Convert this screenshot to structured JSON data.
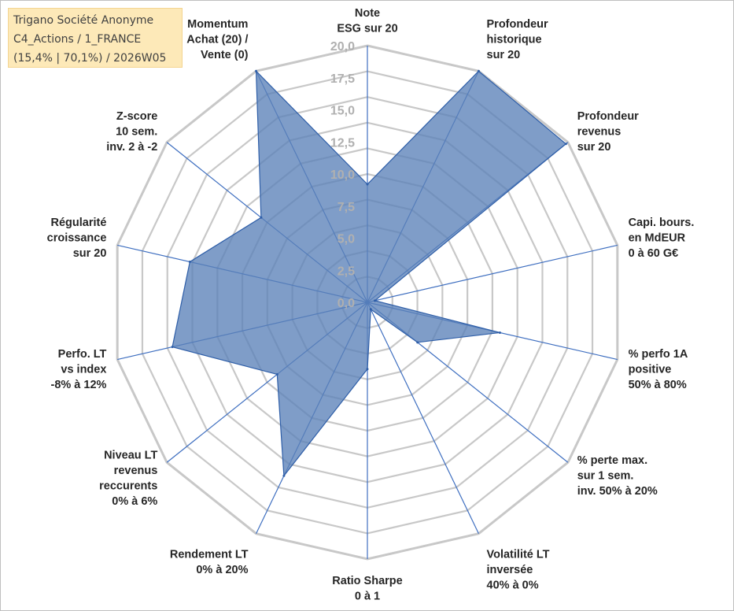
{
  "title_box": {
    "line1": "Trigano Société Anonyme",
    "line2": "C4_Actions / 1_FRANCE",
    "line3": "(15,4% | 70,1%) / 2026W05"
  },
  "colors": {
    "fill": "#5b82b8",
    "stroke": "#2e5ea8",
    "ring": "#c8c8c8",
    "spoke": "#3f6fc0"
  },
  "chart_data": {
    "type": "radar",
    "rmax": 20,
    "ticks": [
      "0,0",
      "2,5",
      "5,0",
      "7,5",
      "10,0",
      "12,5",
      "15,0",
      "17,5",
      "20,0"
    ],
    "tick_values": [
      0,
      2.5,
      5,
      7.5,
      10,
      12.5,
      15,
      17.5,
      20
    ],
    "grid_levels": [
      2,
      4,
      6,
      8,
      10,
      12,
      14,
      16,
      18,
      20
    ],
    "axes": [
      {
        "label": [
          "Note",
          "ESG sur 20"
        ],
        "value": 9.2
      },
      {
        "label": [
          "Profondeur",
          "historique",
          "sur 20"
        ],
        "value": 20.0
      },
      {
        "label": [
          "Profondeur",
          "revenus",
          "sur 20"
        ],
        "value": 19.8
      },
      {
        "label": [
          "Capi. bours.",
          "en MdEUR",
          "0 à 60 G€"
        ],
        "value": 0.6
      },
      {
        "label": [
          "% perfo 1A",
          "positive",
          "50% à 80%"
        ],
        "value": 10.6
      },
      {
        "label": [
          "% perte max.",
          "sur 1 sem.",
          "inv. 50% à 20%"
        ],
        "value": 5.0
      },
      {
        "label": [
          "Volatilité LT",
          "inversée",
          "40% à 0%"
        ],
        "value": 0.6
      },
      {
        "label": [
          "Ratio Sharpe",
          "0 à 1"
        ],
        "value": 5.2
      },
      {
        "label": [
          "Rendement LT",
          "0% à 20%"
        ],
        "value": 15.0
      },
      {
        "label": [
          "Niveau LT",
          "revenus",
          "reccurents",
          "0% à 6%"
        ],
        "value": 9.0
      },
      {
        "label": [
          "Perfo. LT",
          "vs index",
          "-8% à 12%"
        ],
        "value": 15.6
      },
      {
        "label": [
          "Régularité",
          "croissance",
          "sur 20"
        ],
        "value": 14.2
      },
      {
        "label": [
          "Z-score",
          "10 sem.",
          "inv. 2 à -2"
        ],
        "value": 10.6
      },
      {
        "label": [
          "Momentum",
          "Achat (20) /",
          "Vente (0)"
        ],
        "value": 20.0
      }
    ]
  }
}
